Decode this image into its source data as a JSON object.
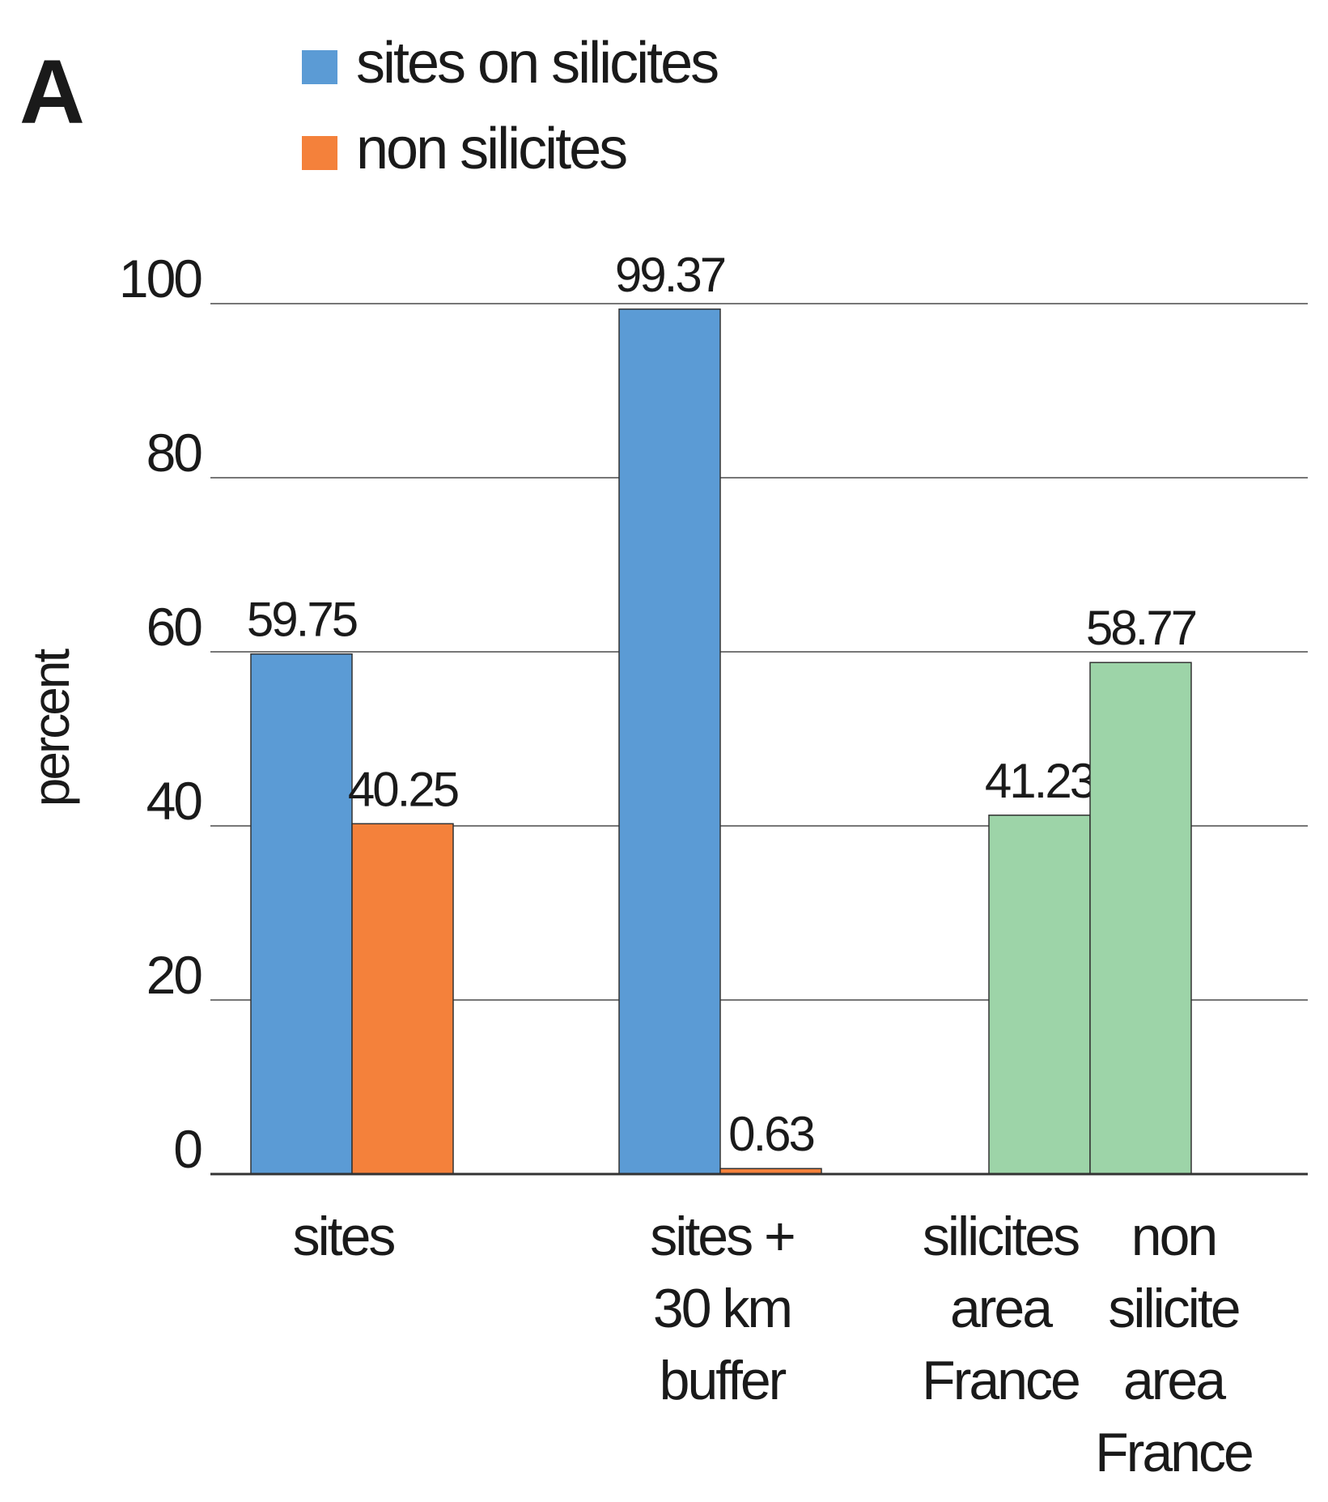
{
  "chart_data": {
    "type": "bar",
    "panel_label": "A",
    "y_label": "percent",
    "categories": [
      [
        "sites"
      ],
      [
        "sites +",
        "30 km",
        "buffer"
      ]
    ],
    "series": [
      {
        "name": "sites on silicites",
        "color": "#5b9bd5",
        "values": [
          59.75,
          99.37
        ]
      },
      {
        "name": "non silicites",
        "color": "#f4813b",
        "values": [
          40.25,
          0.63
        ]
      }
    ],
    "reference_bars": {
      "color": "#9dd4a8",
      "categories": [
        [
          "silicites",
          "area",
          "France"
        ],
        [
          "non",
          "silicite",
          "area",
          "France"
        ]
      ],
      "values": [
        41.23,
        58.77
      ]
    },
    "ylim": [
      0,
      100
    ],
    "yticks": [
      0,
      20,
      40,
      60,
      80,
      100
    ],
    "grid": true
  }
}
